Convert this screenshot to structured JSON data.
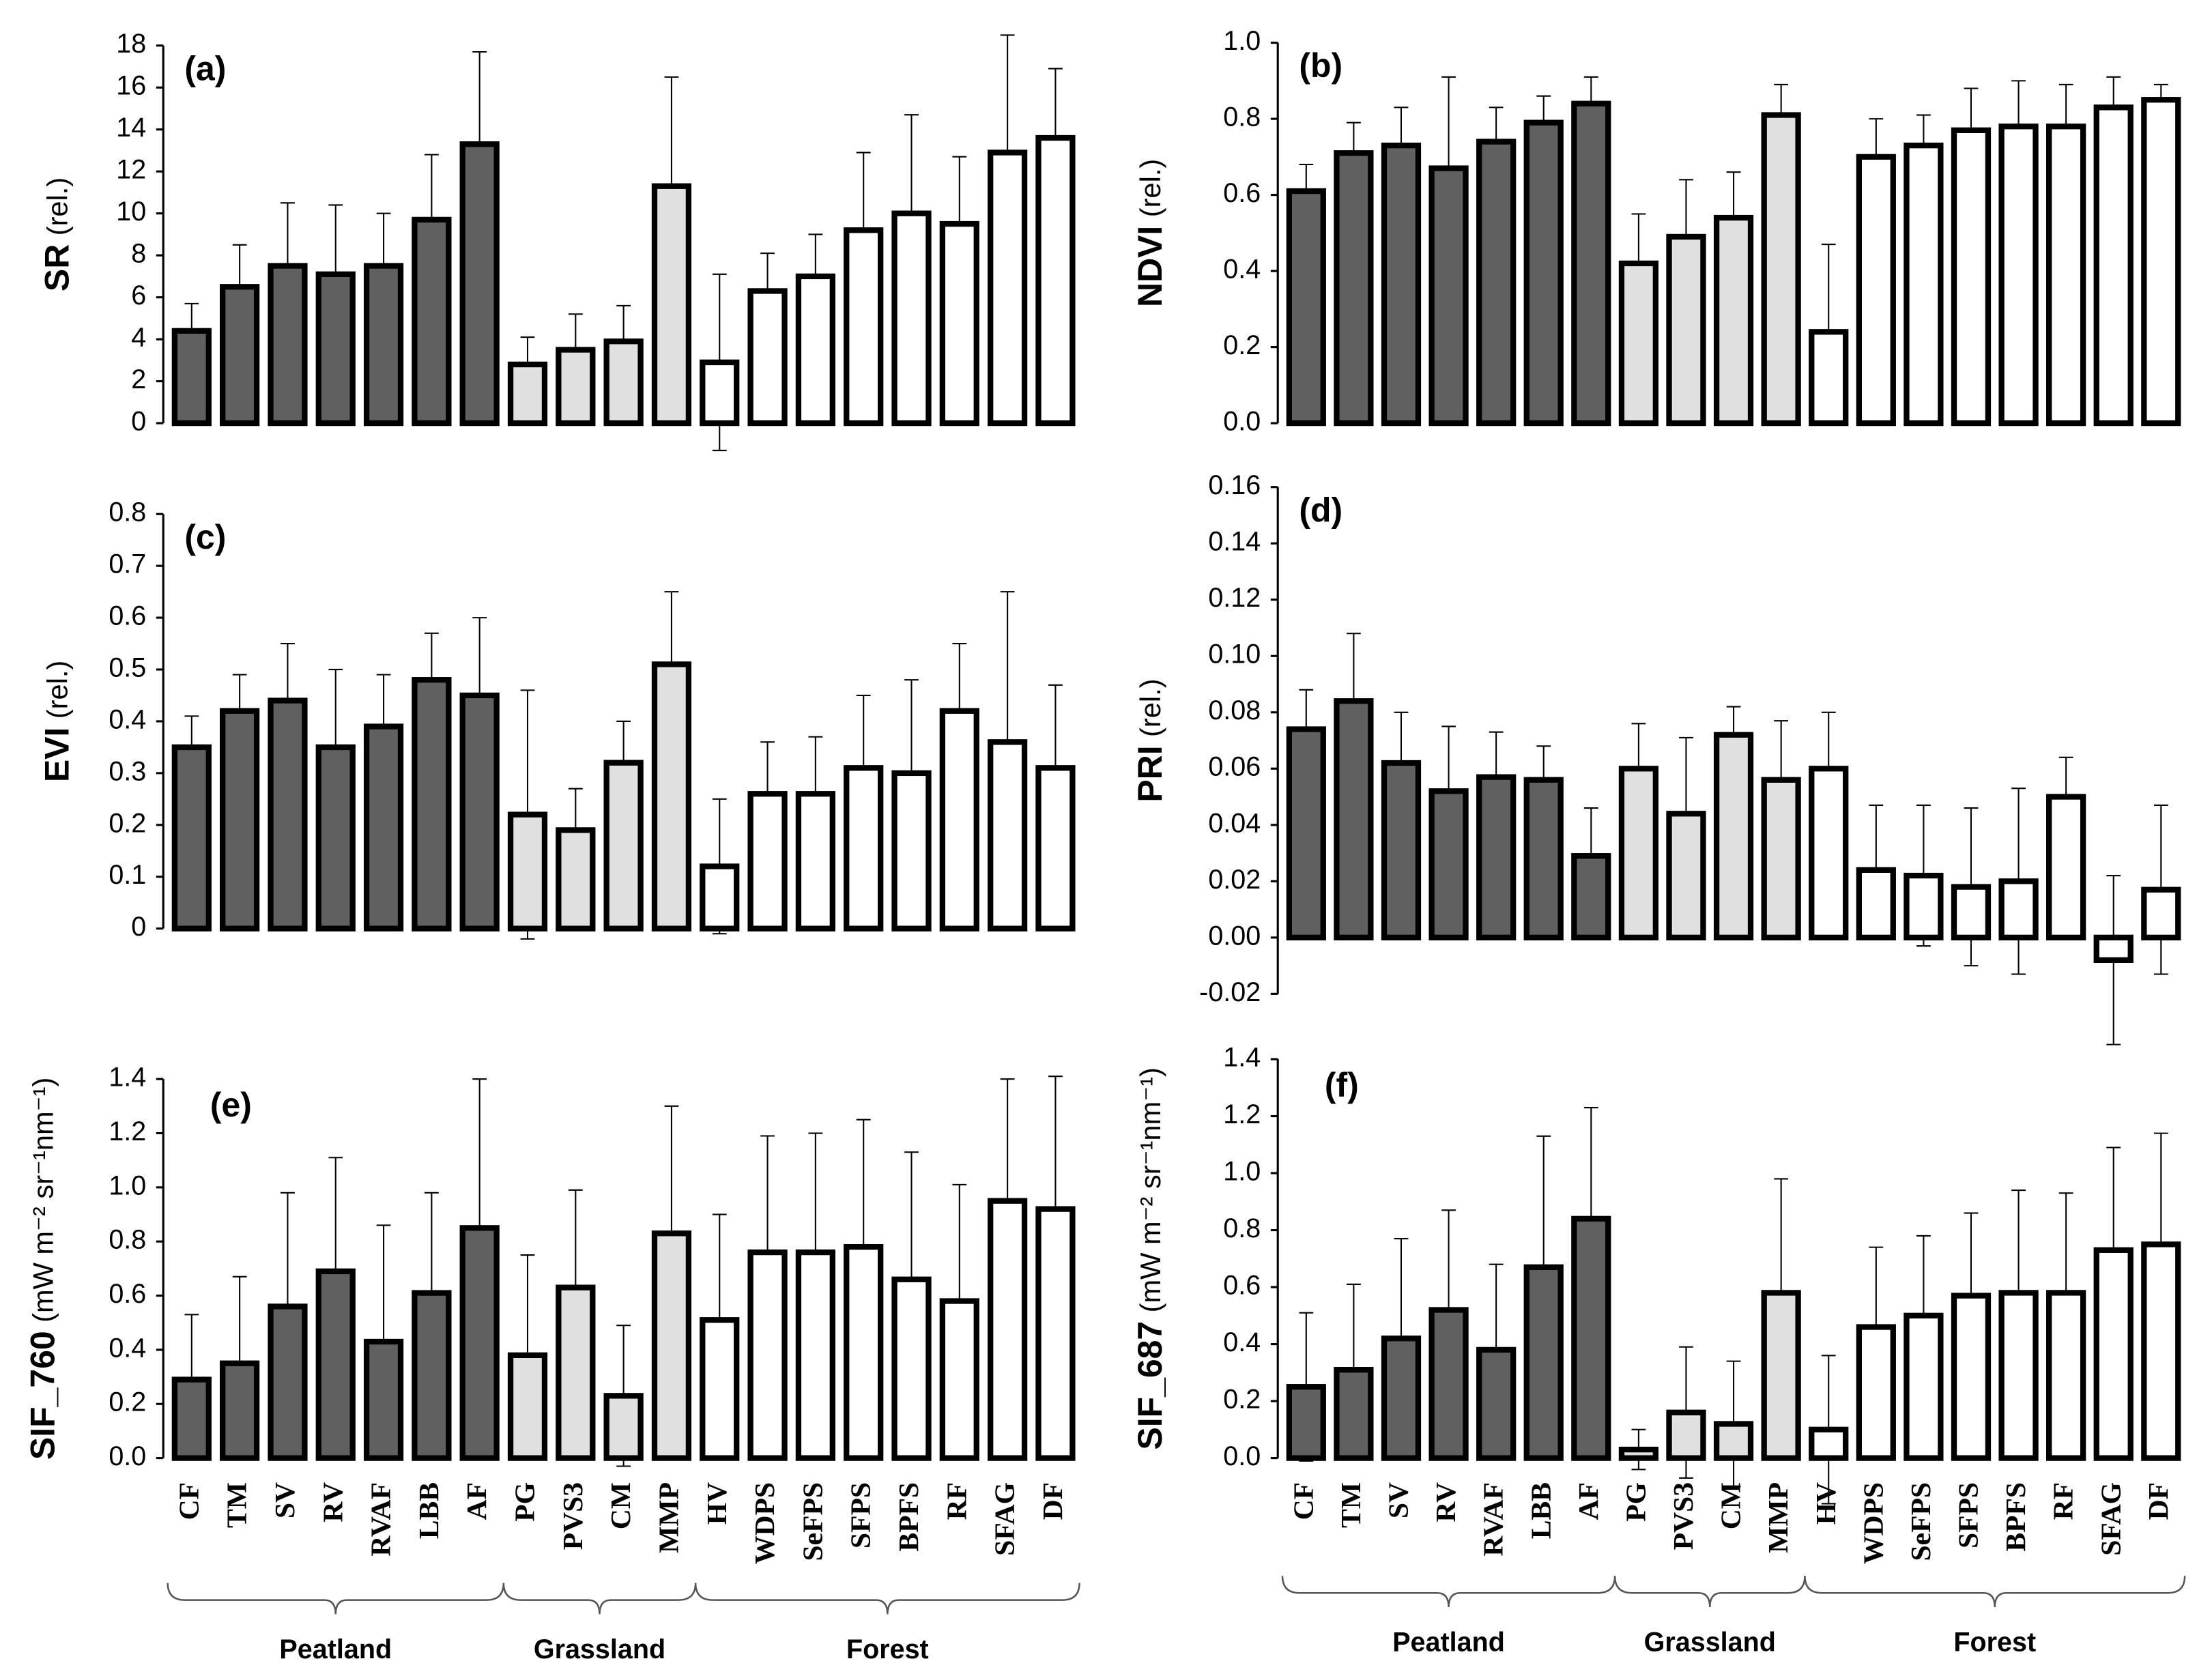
{
  "chart_data": [
    {
      "type": "bar",
      "panel_label": "(a)",
      "ylabel": "SR",
      "yunit": "(rel.)",
      "ylim": [
        0,
        18
      ],
      "yticks": [
        0,
        2,
        4,
        6,
        8,
        10,
        12,
        14,
        16,
        18
      ],
      "values": [
        4.4,
        6.5,
        7.5,
        7.1,
        7.5,
        9.7,
        13.3,
        2.8,
        3.5,
        3.9,
        11.3,
        2.9,
        6.3,
        7.0,
        9.2,
        10.0,
        9.5,
        12.9,
        13.6
      ],
      "errors": [
        1.3,
        2.0,
        3.0,
        3.3,
        2.5,
        3.1,
        4.4,
        1.3,
        1.7,
        1.7,
        5.2,
        4.2,
        1.8,
        2.0,
        3.7,
        4.7,
        3.2,
        5.6,
        3.3
      ],
      "colors": [
        "#606060",
        "#606060",
        "#606060",
        "#606060",
        "#606060",
        "#606060",
        "#606060",
        "#e0e0e0",
        "#e0e0e0",
        "#e0e0e0",
        "#e0e0e0",
        "#ffffff",
        "#ffffff",
        "#ffffff",
        "#ffffff",
        "#ffffff",
        "#ffffff",
        "#ffffff",
        "#ffffff"
      ]
    },
    {
      "type": "bar",
      "panel_label": "(b)",
      "ylabel": "NDVI",
      "yunit": "(rel.)",
      "ylim": [
        0,
        1
      ],
      "yticks": [
        {
          "value": 0,
          "label": "0.0"
        },
        {
          "value": 0.2,
          "label": "0.2"
        },
        {
          "value": 0.4,
          "label": "0.4"
        },
        {
          "value": 0.6,
          "label": "0.6"
        },
        {
          "value": 0.8,
          "label": "0.8"
        },
        {
          "value": 1,
          "label": "1.0"
        }
      ],
      "values": [
        0.61,
        0.71,
        0.73,
        0.67,
        0.74,
        0.79,
        0.84,
        0.42,
        0.49,
        0.54,
        0.81,
        0.24,
        0.7,
        0.73,
        0.77,
        0.78,
        0.78,
        0.83,
        0.85
      ],
      "errors": [
        0.07,
        0.08,
        0.1,
        0.24,
        0.09,
        0.07,
        0.07,
        0.13,
        0.15,
        0.12,
        0.08,
        0.23,
        0.1,
        0.08,
        0.11,
        0.12,
        0.11,
        0.08,
        0.04
      ],
      "colors": [
        "#606060",
        "#606060",
        "#606060",
        "#606060",
        "#606060",
        "#606060",
        "#606060",
        "#e0e0e0",
        "#e0e0e0",
        "#e0e0e0",
        "#e0e0e0",
        "#ffffff",
        "#ffffff",
        "#ffffff",
        "#ffffff",
        "#ffffff",
        "#ffffff",
        "#ffffff",
        "#ffffff"
      ]
    },
    {
      "type": "bar",
      "panel_label": "(c)",
      "ylabel": "EVI",
      "yunit": "(rel.)",
      "ylim": [
        0,
        0.8
      ],
      "yticks": [
        0,
        0.1,
        0.2,
        0.3,
        0.4,
        0.5,
        0.6,
        0.7,
        0.8
      ],
      "values": [
        0.35,
        0.42,
        0.44,
        0.35,
        0.39,
        0.48,
        0.45,
        0.22,
        0.19,
        0.32,
        0.51,
        0.12,
        0.26,
        0.26,
        0.31,
        0.3,
        0.42,
        0.36,
        0.31
      ],
      "errors": [
        0.06,
        0.07,
        0.11,
        0.15,
        0.1,
        0.09,
        0.15,
        0.24,
        0.08,
        0.08,
        0.14,
        0.13,
        0.1,
        0.11,
        0.14,
        0.18,
        0.13,
        0.29,
        0.16
      ],
      "colors": [
        "#606060",
        "#606060",
        "#606060",
        "#606060",
        "#606060",
        "#606060",
        "#606060",
        "#e0e0e0",
        "#e0e0e0",
        "#e0e0e0",
        "#e0e0e0",
        "#ffffff",
        "#ffffff",
        "#ffffff",
        "#ffffff",
        "#ffffff",
        "#ffffff",
        "#ffffff",
        "#ffffff"
      ]
    },
    {
      "type": "bar",
      "panel_label": "(d)",
      "ylabel": "PRI",
      "yunit": "(rel.)",
      "ylim": [
        -0.02,
        0.16
      ],
      "yticks": [
        {
          "value": -0.02,
          "label": "-0.02"
        },
        {
          "value": 0,
          "label": "0.00"
        },
        {
          "value": 0.02,
          "label": "0.02"
        },
        {
          "value": 0.04,
          "label": "0.04"
        },
        {
          "value": 0.06,
          "label": "0.06"
        },
        {
          "value": 0.08,
          "label": "0.08"
        },
        {
          "value": 0.1,
          "label": "0.10"
        },
        {
          "value": 0.12,
          "label": "0.12"
        },
        {
          "value": 0.14,
          "label": "0.14"
        },
        {
          "value": 0.16,
          "label": "0.16"
        }
      ],
      "values": [
        0.074,
        0.084,
        0.062,
        0.052,
        0.057,
        0.056,
        0.029,
        0.06,
        0.044,
        0.072,
        0.056,
        0.06,
        0.024,
        0.022,
        0.018,
        0.02,
        0.05,
        -0.008,
        0.017
      ],
      "errors": [
        0.014,
        0.024,
        0.018,
        0.023,
        0.016,
        0.012,
        0.017,
        0.016,
        0.027,
        0.01,
        0.021,
        0.02,
        0.023,
        0.025,
        0.028,
        0.033,
        0.014,
        0.03,
        0.03
      ],
      "colors": [
        "#606060",
        "#606060",
        "#606060",
        "#606060",
        "#606060",
        "#606060",
        "#606060",
        "#e0e0e0",
        "#e0e0e0",
        "#e0e0e0",
        "#e0e0e0",
        "#ffffff",
        "#ffffff",
        "#ffffff",
        "#ffffff",
        "#ffffff",
        "#ffffff",
        "#ffffff",
        "#ffffff"
      ]
    },
    {
      "type": "bar",
      "panel_label": "(e)",
      "ylabel": "SIF_760",
      "yunit": "(mW m⁻² sr⁻¹nm⁻¹)",
      "ylim": [
        0,
        1.4
      ],
      "yticks": [
        {
          "value": 0,
          "label": "0.0"
        },
        {
          "value": 0.2,
          "label": "0.2"
        },
        {
          "value": 0.4,
          "label": "0.4"
        },
        {
          "value": 0.6,
          "label": "0.6"
        },
        {
          "value": 0.8,
          "label": "0.8"
        },
        {
          "value": 1,
          "label": "1.0"
        },
        {
          "value": 1.2,
          "label": "1.2"
        },
        {
          "value": 1.4,
          "label": "1.4"
        }
      ],
      "values": [
        0.29,
        0.35,
        0.56,
        0.69,
        0.43,
        0.61,
        0.85,
        0.38,
        0.63,
        0.23,
        0.83,
        0.51,
        0.76,
        0.76,
        0.78,
        0.66,
        0.58,
        0.95,
        0.92
      ],
      "errors": [
        0.24,
        0.32,
        0.42,
        0.42,
        0.43,
        0.37,
        0.55,
        0.37,
        0.36,
        0.26,
        0.47,
        0.39,
        0.43,
        0.44,
        0.47,
        0.47,
        0.43,
        0.45,
        0.49
      ],
      "groups": [
        {
          "name": "Peatland",
          "color": "#606060",
          "categories": [
            "CF",
            "TM",
            "SV",
            "RV",
            "RVAF",
            "LBB",
            "AF"
          ]
        },
        {
          "name": "Grassland",
          "color": "#e0e0e0",
          "categories": [
            "PG",
            "PVS3",
            "CM",
            "MMP"
          ]
        },
        {
          "name": "Forest",
          "color": "#ffffff",
          "categories": [
            "HV",
            "WDPS",
            "SeFPS",
            "SFPS",
            "BPFS",
            "RF",
            "SFAG",
            "DF"
          ]
        }
      ]
    },
    {
      "type": "bar",
      "panel_label": "(f)",
      "ylabel": "SIF_687",
      "yunit": "(mW m⁻² sr⁻¹nm⁻¹)",
      "ylim": [
        0,
        1.4
      ],
      "yticks": [
        {
          "value": 0,
          "label": "0.0"
        },
        {
          "value": 0.2,
          "label": "0.2"
        },
        {
          "value": 0.4,
          "label": "0.4"
        },
        {
          "value": 0.6,
          "label": "0.6"
        },
        {
          "value": 0.8,
          "label": "0.8"
        },
        {
          "value": 1,
          "label": "1.0"
        },
        {
          "value": 1.2,
          "label": "1.2"
        },
        {
          "value": 1.4,
          "label": "1.4"
        }
      ],
      "values": [
        0.25,
        0.31,
        0.42,
        0.52,
        0.38,
        0.67,
        0.84,
        0.03,
        0.16,
        0.12,
        0.58,
        0.1,
        0.46,
        0.5,
        0.57,
        0.58,
        0.58,
        0.73,
        0.75
      ],
      "errors": [
        0.26,
        0.3,
        0.35,
        0.35,
        0.3,
        0.46,
        0.39,
        0.07,
        0.23,
        0.22,
        0.4,
        0.26,
        0.28,
        0.28,
        0.29,
        0.36,
        0.35,
        0.36,
        0.39
      ],
      "groups": [
        {
          "name": "Peatland",
          "color": "#606060",
          "categories": [
            "CF",
            "TM",
            "SV",
            "RV",
            "RVAF",
            "LBB",
            "AF"
          ]
        },
        {
          "name": "Grassland",
          "color": "#e0e0e0",
          "categories": [
            "PG",
            "PVS3",
            "CM",
            "MMP"
          ]
        },
        {
          "name": "Forest",
          "color": "#ffffff",
          "categories": [
            "HV",
            "WDPS",
            "SeFPS",
            "SFPS",
            "BPFS",
            "RF",
            "SFAG",
            "DF"
          ]
        }
      ]
    }
  ]
}
